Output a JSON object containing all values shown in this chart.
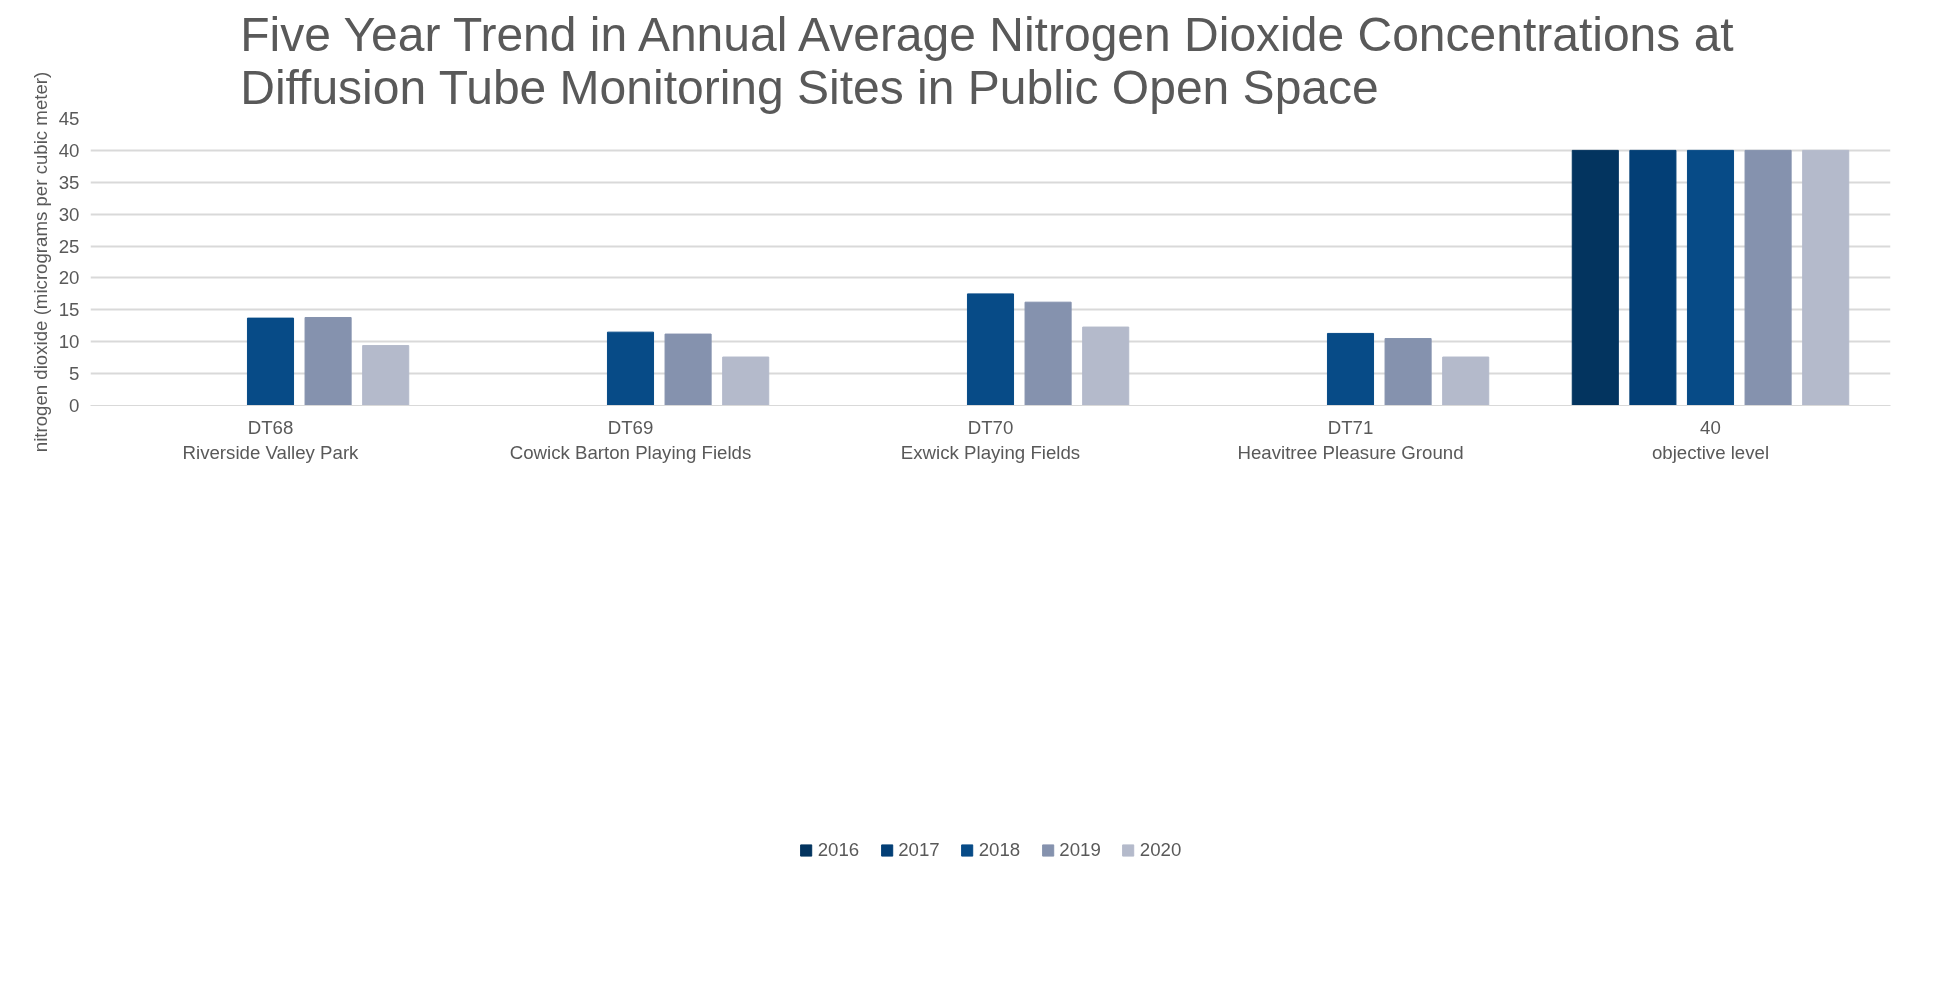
{
  "chart_data": {
    "type": "bar",
    "title": "Five Year Trend in Annual Average Nitrogen Dioxide Concentrations at\nDiffusion Tube Monitoring Sites in Public Open Space",
    "ylabel": "nitrogen dioxide (micrograms per cubic meter)",
    "categories": [
      "DT68\nRiverside Valley Park",
      "DT69\nCowick Barton Playing Fields",
      "DT70\nExwick Playing Fields",
      "DT71\nHeavitree Pleasure Ground",
      "40\nobjective level"
    ],
    "series": [
      {
        "name": "2016",
        "color": "#03345f",
        "values": [
          null,
          null,
          null,
          null,
          40
        ]
      },
      {
        "name": "2017",
        "color": "#033f76",
        "values": [
          null,
          null,
          null,
          null,
          40
        ]
      },
      {
        "name": "2018",
        "color": "#074b87",
        "values": [
          13.7,
          11.5,
          17.5,
          11.3,
          40
        ]
      },
      {
        "name": "2019",
        "color": "#8592ae",
        "values": [
          13.8,
          11.2,
          16.2,
          10.5,
          40
        ]
      },
      {
        "name": "2020",
        "color": "#b4bacb",
        "values": [
          9.4,
          7.6,
          12.3,
          7.6,
          40
        ]
      }
    ],
    "ylim": [
      0,
      45
    ],
    "yticks": [
      0,
      5,
      10,
      15,
      20,
      25,
      30,
      35,
      40,
      45
    ],
    "grid": "y",
    "legend": "bottom"
  }
}
